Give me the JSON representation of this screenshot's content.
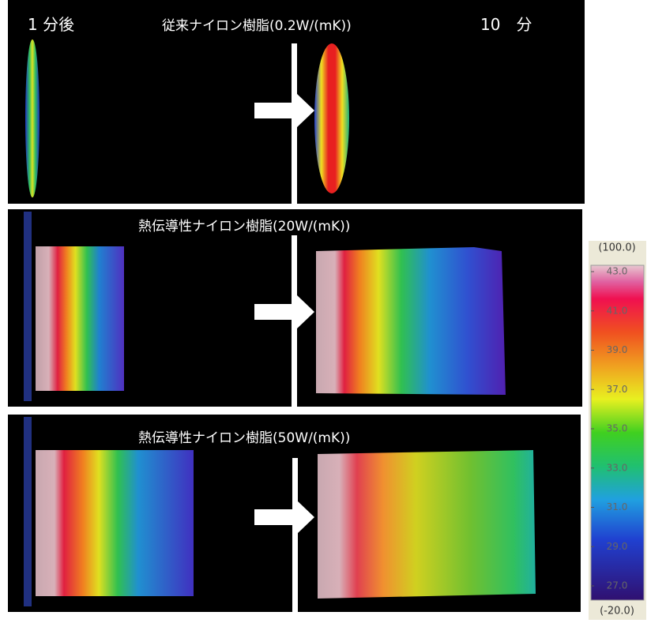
{
  "header": {
    "left": "1 分後",
    "right": "10　分"
  },
  "rows": [
    {
      "title": "従来ナイロン樹脂(0.2W/(mK))"
    },
    {
      "title": "熱伝導性ナイロン樹脂(20W/(mK))"
    },
    {
      "title": "熱伝導性ナイロン樹脂(50W/(mK))"
    }
  ],
  "scale": {
    "top": "(100.0)",
    "labels": [
      "43.0",
      "41.0",
      "39.0",
      "37.0",
      "35.0",
      "33.0",
      "31.0",
      "29.0",
      "27.0"
    ],
    "bottom": "(-20.0)"
  }
}
